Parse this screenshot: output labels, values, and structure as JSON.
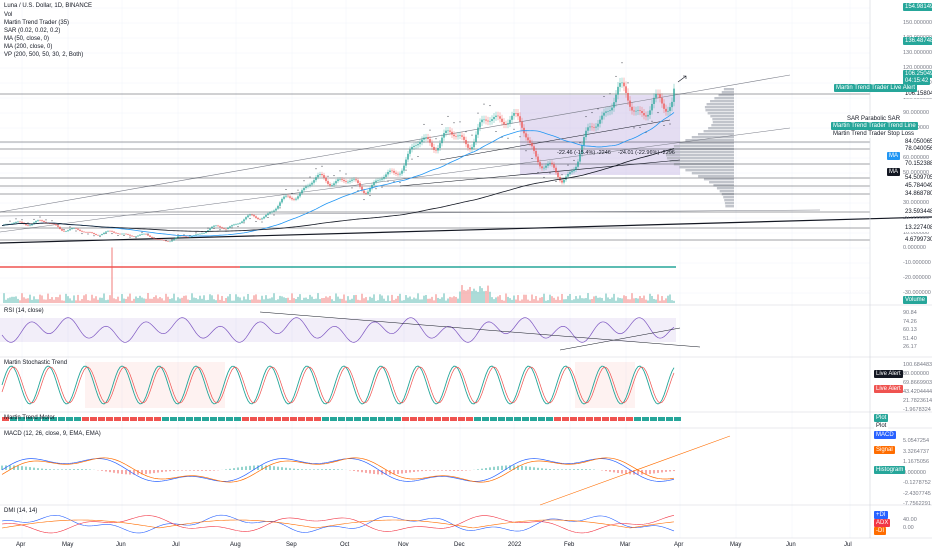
{
  "header": {
    "symbol": "Luna / U.S. Dollar, 1D, BINANCE",
    "indicators": [
      "Vol",
      "Martin Trend Trader (35)",
      "SAR (0.02, 0.02, 0.2)",
      "MA (50, close, 0)",
      "MA (200, close, 0)",
      "VP (200, 500, 50, 30, 2, Both)"
    ]
  },
  "colors": {
    "up": "#26a69a",
    "down": "#ef5350",
    "cloud": "#b39ddb",
    "ma50": "#2196f3",
    "ma200": "#131722",
    "sar": "#131722",
    "vp": "#b2b5be",
    "rsi_line": "#7e57c2",
    "macd_line": "#2962ff",
    "signal_line": "#ff6d00",
    "plus_di": "#2962ff",
    "minus_di": "#f23645",
    "adx": "#ff6d00"
  },
  "price_axis": [
    "160.000000",
    "150.000000",
    "140.000000",
    "130.000000",
    "120.000000",
    "110.000000",
    "100.000000",
    "90.000000",
    "80.000000",
    "70.000000",
    "60.000000",
    "50.000000",
    "40.000000",
    "30.000000",
    "20.000000",
    "10.000000",
    "0.000000",
    "-10.000000",
    "-20.000000",
    "-30.000000"
  ],
  "price_tags": [
    {
      "text": "154.9814930",
      "bg": "#26a69a",
      "fg": "#ffffff",
      "top": 3
    },
    {
      "text": "136.4874810",
      "bg": "#26a69a",
      "fg": "#ffffff",
      "top": 37
    },
    {
      "text": "106.2504923",
      "bg": "#26a69a",
      "fg": "#ffffff",
      "top": 70
    },
    {
      "text": "04:15:42",
      "bg": "#26a69a",
      "fg": "#ffffff",
      "top": 77
    },
    {
      "text": "106.1580410",
      "bg": "#ffffff",
      "fg": "#131722",
      "top": 90
    },
    {
      "text": "84.0500655",
      "bg": "#ffffff",
      "fg": "#131722",
      "top": 138
    },
    {
      "text": "78.0400562",
      "bg": "#ffffff",
      "fg": "#131722",
      "top": 145
    },
    {
      "text": "70.1523883",
      "bg": "#ffffff",
      "fg": "#131722",
      "top": 160
    },
    {
      "text": "54.5097053",
      "bg": "#ffffff",
      "fg": "#131722",
      "top": 174
    },
    {
      "text": "45.7840491",
      "bg": "#ffffff",
      "fg": "#131722",
      "top": 182
    },
    {
      "text": "34.8687809",
      "bg": "#ffffff",
      "fg": "#131722",
      "top": 190
    },
    {
      "text": "23.5934480",
      "bg": "#ffffff",
      "fg": "#131722",
      "top": 208
    },
    {
      "text": "13.2274088",
      "bg": "#ffffff",
      "fg": "#131722",
      "top": 224
    },
    {
      "text": "4.6799730",
      "bg": "#ffffff",
      "fg": "#131722",
      "top": 236
    },
    {
      "text": "Volume",
      "bg": "#26a69a",
      "fg": "#ffffff",
      "top": 296
    }
  ],
  "price_labels": [
    {
      "text": "Martin Trend Trader Live Alert",
      "bg": "#26a69a",
      "fg": "#ffffff",
      "left": 834,
      "top": 84
    },
    {
      "text": "SAR Parabolic SAR",
      "bg": "#ffffff",
      "fg": "#131722",
      "left": 845,
      "top": 115
    },
    {
      "text": "Martin Trend Trader Trend Line",
      "bg": "#26a69a",
      "fg": "#ffffff",
      "left": 831,
      "top": 122
    },
    {
      "text": "Martin Trend Trader Stop Loss",
      "bg": "#ffffff",
      "fg": "#131722",
      "left": 831,
      "top": 130
    },
    {
      "text": "MA",
      "bg": "#2196f3",
      "fg": "#ffffff",
      "left": 887,
      "top": 152
    },
    {
      "text": "MA",
      "bg": "#131722",
      "fg": "#ffffff",
      "left": 887,
      "top": 168
    }
  ],
  "annotations": [
    {
      "text": "-22.46 (-15.4%) -2246",
      "x": 557,
      "y": 150
    },
    {
      "text": "-24.01 (-22.96%) -2296",
      "x": 618,
      "y": 150
    }
  ],
  "rsi": {
    "title": "RSI (14, close)",
    "axis": [
      "90.84",
      "74.26",
      "60.13",
      "51.40",
      "26.17"
    ]
  },
  "stoch": {
    "title": "Martin Stochastic Trend",
    "axis": [
      "100.6844836",
      "80.000000",
      "69.8669903",
      "43.4204444",
      "21.7823614",
      "-1.9678324"
    ],
    "labels": [
      {
        "text": "Live Alert",
        "bg": "#131722",
        "fg": "#ffffff",
        "top": 370
      },
      {
        "text": "Live Alert",
        "bg": "#ef5350",
        "fg": "#ffffff",
        "top": 385
      }
    ]
  },
  "motor": {
    "title": "Martin Trend Motor",
    "labels": [
      {
        "text": "Plot",
        "bg": "#26a69a",
        "fg": "#ffffff",
        "top": 414
      },
      {
        "text": "Plot",
        "bg": "#ffffff",
        "fg": "#131722",
        "top": 422
      }
    ]
  },
  "macd": {
    "title": "MACD (12, 26, close, 9, EMA, EMA)",
    "axis": [
      "5.0547254",
      "3.3264737",
      "1.1675056",
      "0.000000",
      "-0.1278752",
      "-2.4307745",
      "-7.7562291"
    ],
    "labels": [
      {
        "text": "MACD",
        "bg": "#2962ff",
        "fg": "#ffffff",
        "top": 431
      },
      {
        "text": "Signal",
        "bg": "#ff6d00",
        "fg": "#ffffff",
        "top": 446
      },
      {
        "text": "Histogram",
        "bg": "#26a69a",
        "fg": "#ffffff",
        "top": 466
      }
    ]
  },
  "dmi": {
    "title": "DMI (14, 14)",
    "axis": [
      "40.00",
      "0.00"
    ],
    "labels": [
      {
        "text": "+DI",
        "bg": "#2962ff",
        "fg": "#ffffff",
        "top": 511
      },
      {
        "text": "ADX",
        "bg": "#f23645",
        "fg": "#ffffff",
        "top": 519
      },
      {
        "text": "-DI",
        "bg": "#ff6d00",
        "fg": "#ffffff",
        "top": 527
      }
    ]
  },
  "chart_data": {
    "type": "line",
    "title": "Luna / U.S. Dollar, 1D, BINANCE",
    "xlabel": "",
    "ylabel": "",
    "x_tick_labels": [
      "Apr",
      "May",
      "Jun",
      "Jul",
      "Aug",
      "Sep",
      "Oct",
      "Nov",
      "Dec",
      "2022",
      "Feb",
      "Mar",
      "Apr",
      "May",
      "Jun",
      "Jul"
    ],
    "ylim": [
      -30,
      160
    ],
    "grid": true,
    "series": [
      {
        "name": "Luna / U.S. Dollar",
        "x": [
          "Apr",
          "May",
          "Jun",
          "Jul",
          "Aug",
          "Sep",
          "Oct",
          "Nov",
          "Dec",
          "2022",
          "Feb",
          "Mar",
          "Apr"
        ],
        "values": [
          14,
          16,
          8,
          7,
          12,
          32,
          45,
          48,
          80,
          82,
          50,
          95,
          106
        ]
      }
    ],
    "last_price": 106.2504923
  }
}
